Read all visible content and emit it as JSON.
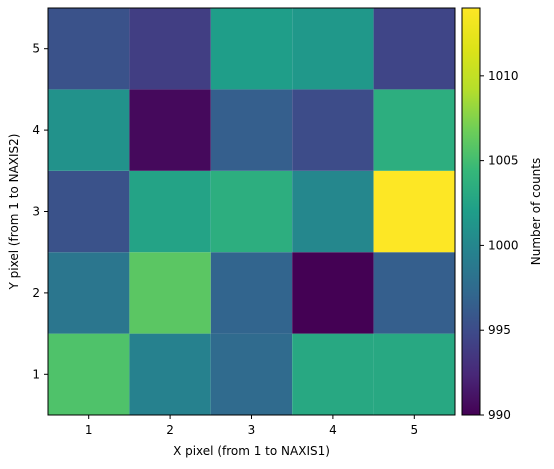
{
  "chart_data": {
    "type": "heatmap",
    "title": "",
    "xlabel": "X pixel (from 1 to NAXIS1)",
    "ylabel": "Y pixel (from 1 to NAXIS2)",
    "x": [
      1,
      2,
      3,
      4,
      5
    ],
    "y": [
      1,
      2,
      3,
      4,
      5
    ],
    "xlim": [
      0.5,
      5.5
    ],
    "ylim": [
      0.5,
      5.5
    ],
    "values_by_row_y1_to_y5": [
      [
        1005.5,
        999.5,
        997.5,
        1003.0,
        1003.0
      ],
      [
        998.5,
        1006.0,
        997.0,
        990.0,
        996.5
      ],
      [
        995.5,
        1002.5,
        1003.5,
        1000.0,
        1014.0
      ],
      [
        1001.0,
        990.5,
        996.5,
        995.0,
        1003.5
      ],
      [
        995.5,
        994.0,
        1002.0,
        1001.5,
        994.5
      ]
    ],
    "colormap": "viridis",
    "colorbar": {
      "label": "Number of counts",
      "min": 990,
      "max": 1014,
      "ticks": [
        990,
        995,
        1000,
        1005,
        1010
      ]
    },
    "grid": false
  }
}
